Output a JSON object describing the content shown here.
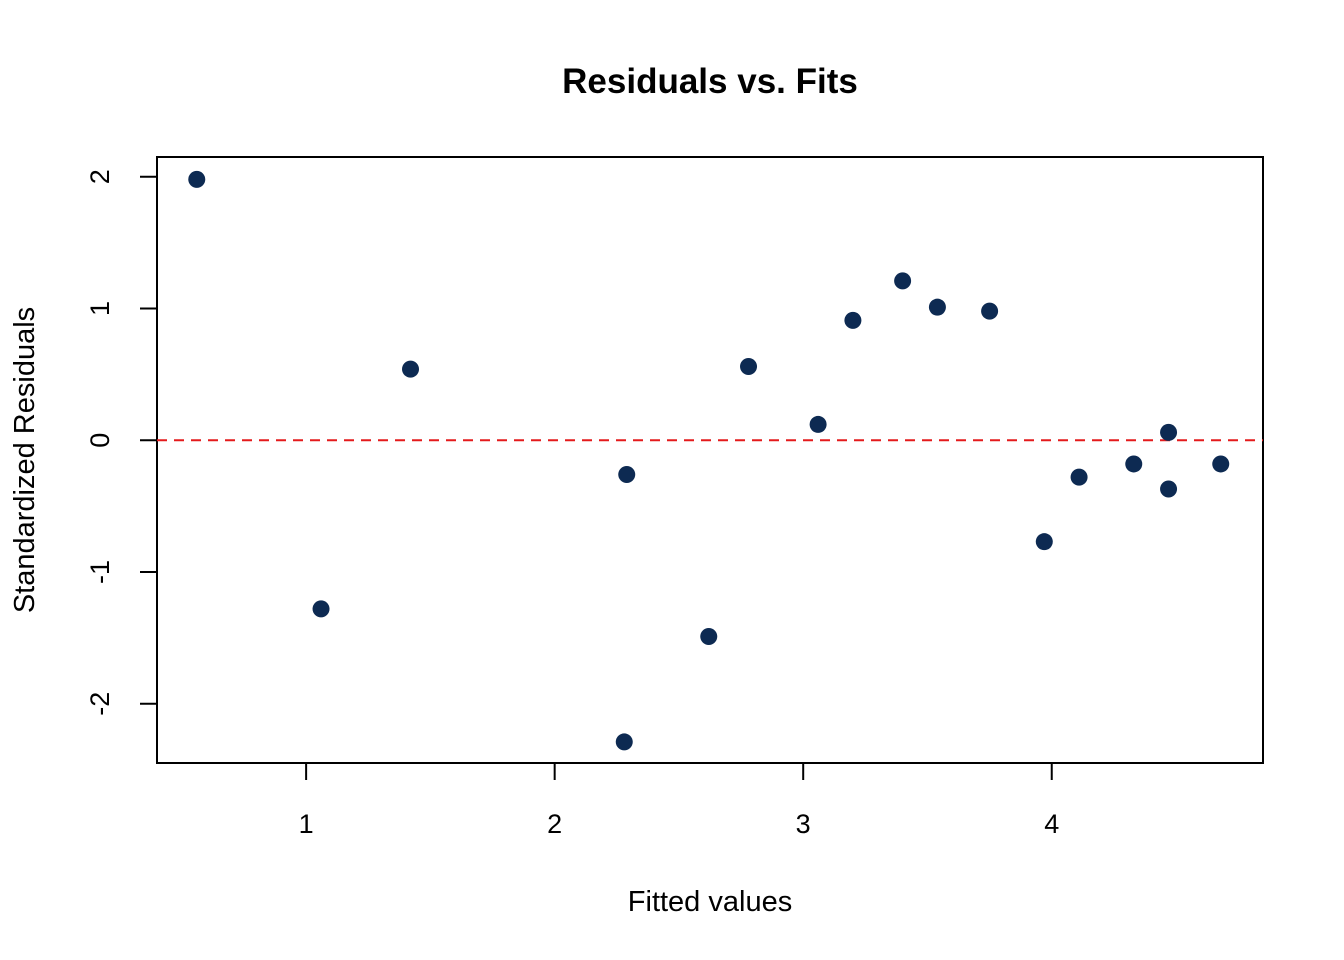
{
  "chart_data": {
    "type": "scatter",
    "title": "Residuals vs. Fits",
    "xlabel": "Fitted values",
    "ylabel": "Standardized Residuals",
    "xlim": [
      0.4,
      4.85
    ],
    "ylim": [
      -2.45,
      2.15
    ],
    "xticks": [
      1,
      2,
      3,
      4
    ],
    "yticks": [
      -2,
      -1,
      0,
      1,
      2
    ],
    "reference_line": {
      "y": 0,
      "color": "#e41a1c",
      "style": "dashed"
    },
    "point_color": "#0d2a52",
    "grid": false,
    "points": [
      {
        "x": 0.56,
        "y": 1.98
      },
      {
        "x": 1.06,
        "y": -1.28
      },
      {
        "x": 1.42,
        "y": 0.54
      },
      {
        "x": 2.28,
        "y": -2.29
      },
      {
        "x": 2.29,
        "y": -0.26
      },
      {
        "x": 2.62,
        "y": -1.49
      },
      {
        "x": 2.78,
        "y": 0.56
      },
      {
        "x": 3.06,
        "y": 0.12
      },
      {
        "x": 3.2,
        "y": 0.91
      },
      {
        "x": 3.4,
        "y": 1.21
      },
      {
        "x": 3.54,
        "y": 1.01
      },
      {
        "x": 3.75,
        "y": 0.98
      },
      {
        "x": 3.97,
        "y": -0.77
      },
      {
        "x": 4.11,
        "y": -0.28
      },
      {
        "x": 4.33,
        "y": -0.18
      },
      {
        "x": 4.47,
        "y": 0.06
      },
      {
        "x": 4.47,
        "y": -0.37
      },
      {
        "x": 4.68,
        "y": -0.18
      }
    ]
  }
}
